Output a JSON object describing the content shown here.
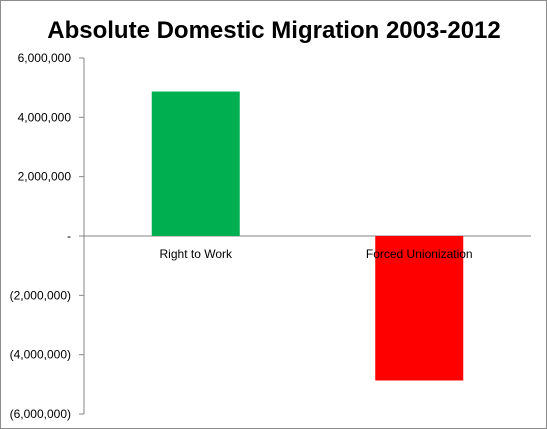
{
  "chart_data": {
    "type": "bar",
    "title": "Absolute Domestic Migration 2003-2012",
    "xlabel": "",
    "ylabel": "",
    "categories": [
      "Right to Work",
      "Forced Unionization"
    ],
    "values": [
      4870000,
      -4870000
    ],
    "colors": [
      "#00b050",
      "#ff0000"
    ],
    "ylim": [
      -6000000,
      6000000
    ],
    "yticks": [
      6000000,
      4000000,
      2000000,
      0,
      -2000000,
      -4000000,
      -6000000
    ],
    "ytick_labels": [
      "6,000,000",
      "4,000,000",
      "2,000,000",
      "-",
      "(2,000,000)",
      "(4,000,000)",
      "(6,000,000)"
    ],
    "grid": false,
    "legend": "none"
  }
}
